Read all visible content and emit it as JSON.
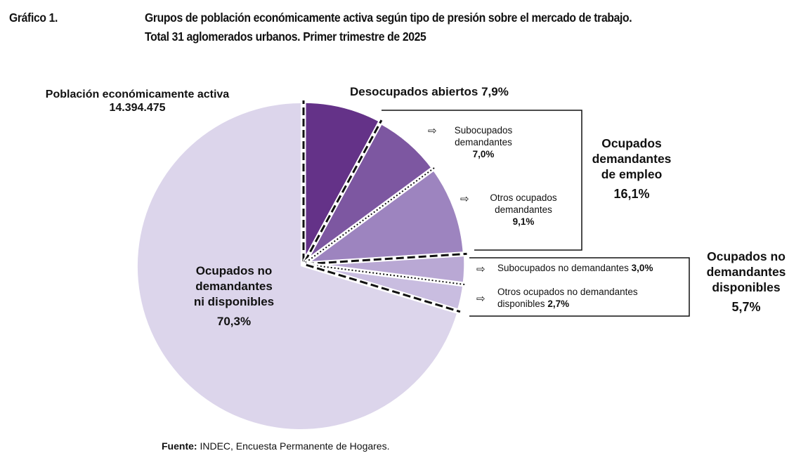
{
  "header": {
    "figure_label": "Gráfico 1.",
    "title_line1": "Grupos de población económicamente activa según tipo de presión sobre el mercado de trabajo.",
    "title_line2": "Total 31 aglomerados urbanos. Primer trimestre de 2025"
  },
  "total": {
    "label": "Población económicamente activa",
    "value": "14.394.475"
  },
  "groups": {
    "demandantes": {
      "line1": "Ocupados",
      "line2": "demandantes",
      "line3": "de empleo",
      "pct": "16,1%"
    },
    "no_demandantes_disponibles": {
      "line1": "Ocupados no",
      "line2": "demandantes",
      "line3": "disponibles",
      "pct": "5,7%"
    }
  },
  "labels": {
    "desocupados": {
      "text": "Desocupados abiertos",
      "pct": "7,9%"
    },
    "subocupados_dem": {
      "line1": "Subocupados",
      "line2": "demandantes",
      "pct": "7,0%"
    },
    "otros_dem": {
      "line1": "Otros ocupados",
      "line2": "demandantes",
      "pct": "9,1%"
    },
    "subocupados_no_dem": {
      "text": "Subocupados no demandantes",
      "pct": "3,0%"
    },
    "otros_no_dem": {
      "line1": "Otros ocupados no demandantes",
      "line2": "disponibles",
      "pct": "2,7%"
    },
    "no_dem_ni_disp": {
      "line1": "Ocupados no",
      "line2": "demandantes",
      "line3": "ni disponibles",
      "pct": "70,3%"
    }
  },
  "arrow_glyph": "⇨",
  "source": {
    "label": "Fuente:",
    "text": "INDEC, Encuesta Permanente de Hogares."
  },
  "chart_data": {
    "type": "pie",
    "start": "12 o'clock, clockwise",
    "series": [
      {
        "name": "Desocupados abiertos",
        "value": 7.9,
        "color": "#643288"
      },
      {
        "name": "Subocupados demandantes",
        "value": 7.0,
        "color": "#7d57a1"
      },
      {
        "name": "Otros ocupados demandantes",
        "value": 9.1,
        "color": "#9d84bf"
      },
      {
        "name": "Subocupados no demandantes",
        "value": 3.0,
        "color": "#b9a8d4"
      },
      {
        "name": "Otros ocupados no demandantes disponibles",
        "value": 2.7,
        "color": "#c9bde0"
      },
      {
        "name": "Ocupados no demandantes ni disponibles",
        "value": 70.3,
        "color": "#dcd5eb"
      }
    ],
    "explode_first": 5.1
  }
}
